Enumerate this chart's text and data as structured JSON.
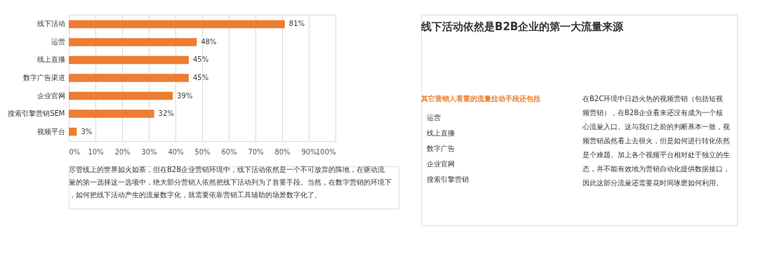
{
  "chart_data": {
    "type": "bar",
    "orientation": "horizontal",
    "title": "线下活动依然是B2B企业的第一大流量来源",
    "categories": [
      "线下活动",
      "运营",
      "线上直播",
      "数字广告渠道",
      "企业官网",
      "搜索引擎营销SEM",
      "视频平台"
    ],
    "values": [
      81,
      48,
      45,
      45,
      39,
      32,
      3
    ],
    "value_labels": [
      "81%",
      "48%",
      "45%",
      "45%",
      "39%",
      "32%",
      "3%"
    ],
    "color": "#ed7d31",
    "xlim": [
      0,
      100
    ],
    "xticks": [
      {
        "value": 0,
        "label": "0%"
      },
      {
        "value": 10,
        "label": "10%"
      },
      {
        "value": 20,
        "label": "20%"
      },
      {
        "value": 30,
        "label": "30%"
      },
      {
        "value": 40,
        "label": "40%"
      },
      {
        "value": 50,
        "label": "50%"
      },
      {
        "value": 60,
        "label": "60%"
      },
      {
        "value": 70,
        "label": "70%"
      },
      {
        "value": 80,
        "label": "80%"
      },
      {
        "value": 90,
        "label": "90%"
      },
      {
        "value": 100,
        "label": "100%"
      }
    ],
    "grid": "x",
    "annotations": [
      "尽管线上的世界如火如荼，但在B2B企业营销环境中，线下活动依然是一个不可放弃的阵地，在驱动流量的第一选择这一选项中，绝大部分营销人依然把线下活动列为了首要手段。当然，在数字营销的环境下，如何把线下活动产生的流量数字化，就需要依靠营销工具辅助的场景数字化了。",
      "其它营销人看重的流量拉动手段还包括",
      "运营",
      "线上直播",
      "数字广告",
      "企业官网",
      "搜索引擎营销",
      "在B2C环境中日趋火热的视频营销（包括短视频营销），在B2B企业看来还没有成为一个核心流量入口。这与我们之前的判断基本一致，视频营销虽然看上去很火，但是如何进行转化依然是个难题。加上各个视频平台相对处于独立的生态，并不能有效地为营销自动化提供数据接口，因此这部分流量还需要花时间琢磨如何利用。"
    ]
  }
}
